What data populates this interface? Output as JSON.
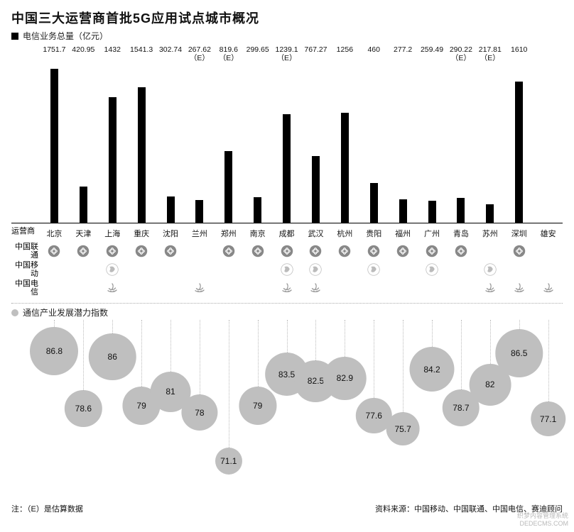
{
  "title": "中国三大运营商首批5G应用试点城市概况",
  "bar_legend": "电信业务总量（亿元）",
  "axis_left_label": "运营商",
  "operators": [
    "中国联通",
    "中国移动",
    "中国电信"
  ],
  "bubble_legend": "通信产业发展潜力指数",
  "footnote_left": "注：（E）是估算数据",
  "footnote_right": "资料来源：中国移动、中国联通、中国电信、赛迪顾问",
  "watermark_line1": "织梦内容管理系统",
  "watermark_line2": "DEDECMS.COM",
  "colors": {
    "bar": "#000000",
    "bubble": "#bfbfbf",
    "stem": "#bbbbbb",
    "divider": "#aaaaaa",
    "text": "#111111",
    "background": "#ffffff"
  },
  "chart": {
    "type": "bar+bubble",
    "max_value": 1800,
    "min_bubble": 71.1,
    "max_bubble": 86.8,
    "title_fontsize": 18,
    "label_fontsize": 11
  },
  "cities": [
    {
      "name": "北京",
      "value": 1751.7,
      "value_label": "1751.7",
      "unicom": true,
      "mobile": false,
      "telecom": false,
      "bubble": 86.8
    },
    {
      "name": "天津",
      "value": 420.95,
      "value_label": "420.95",
      "unicom": true,
      "mobile": false,
      "telecom": false,
      "bubble": 78.6
    },
    {
      "name": "上海",
      "value": 1432,
      "value_label": "1432",
      "unicom": true,
      "mobile": true,
      "telecom": true,
      "bubble": 86
    },
    {
      "name": "重庆",
      "value": 1541.3,
      "value_label": "1541.3",
      "unicom": true,
      "mobile": false,
      "telecom": false,
      "bubble": 79
    },
    {
      "name": "沈阳",
      "value": 302.74,
      "value_label": "302.74",
      "unicom": true,
      "mobile": false,
      "telecom": false,
      "bubble": 81
    },
    {
      "name": "兰州",
      "value": 267.62,
      "value_label": "267.62\n（E）",
      "unicom": false,
      "mobile": false,
      "telecom": true,
      "bubble": 78
    },
    {
      "name": "郑州",
      "value": 819.6,
      "value_label": "819.6\n（E）",
      "unicom": true,
      "mobile": false,
      "telecom": false,
      "bubble": 71.1
    },
    {
      "name": "南京",
      "value": 299.65,
      "value_label": "299.65",
      "unicom": true,
      "mobile": false,
      "telecom": false,
      "bubble": 79
    },
    {
      "name": "成都",
      "value": 1239.1,
      "value_label": "1239.1\n（E）",
      "unicom": true,
      "mobile": true,
      "telecom": true,
      "bubble": 83.5
    },
    {
      "name": "武汉",
      "value": 767.27,
      "value_label": "767.27",
      "unicom": true,
      "mobile": true,
      "telecom": true,
      "bubble": 82.5
    },
    {
      "name": "杭州",
      "value": 1256,
      "value_label": "1256",
      "unicom": true,
      "mobile": false,
      "telecom": false,
      "bubble": 82.9
    },
    {
      "name": "贵阳",
      "value": 460,
      "value_label": "460",
      "unicom": true,
      "mobile": true,
      "telecom": false,
      "bubble": 77.6
    },
    {
      "name": "福州",
      "value": 277.2,
      "value_label": "277.2",
      "unicom": true,
      "mobile": false,
      "telecom": false,
      "bubble": 75.7
    },
    {
      "name": "广州",
      "value": 259.49,
      "value_label": "259.49",
      "unicom": true,
      "mobile": true,
      "telecom": false,
      "bubble": 84.2
    },
    {
      "name": "青岛",
      "value": 290.22,
      "value_label": "290.22\n（E）",
      "unicom": true,
      "mobile": false,
      "telecom": false,
      "bubble": 78.7
    },
    {
      "name": "苏州",
      "value": 217.81,
      "value_label": "217.81\n（E）",
      "unicom": false,
      "mobile": true,
      "telecom": true,
      "bubble": 82
    },
    {
      "name": "深圳",
      "value": 1610,
      "value_label": "1610",
      "unicom": true,
      "mobile": false,
      "telecom": true,
      "bubble": 86.5
    },
    {
      "name": "雄安",
      "value": null,
      "value_label": "",
      "unicom": false,
      "mobile": false,
      "telecom": true,
      "bubble": 77.1
    }
  ]
}
